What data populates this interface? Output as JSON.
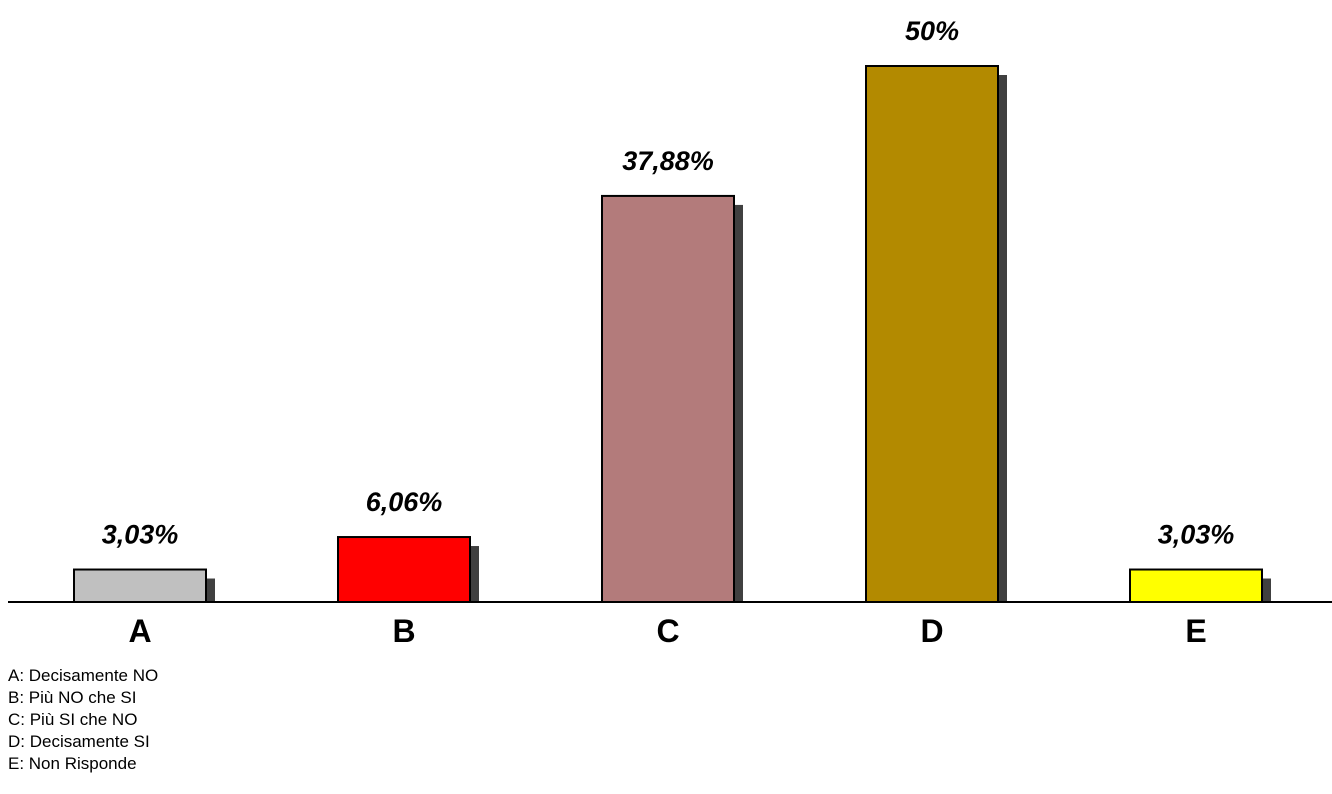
{
  "chart_data": {
    "type": "bar",
    "categories": [
      "A",
      "B",
      "C",
      "D",
      "E"
    ],
    "values": [
      3.03,
      6.06,
      37.88,
      50,
      3.03
    ],
    "value_labels": [
      "3,03%",
      "6,06%",
      "37,88%",
      "50%",
      "3,03%"
    ],
    "colors": [
      "#c0c0c0",
      "#ff0000",
      "#b37b7b",
      "#b38a00",
      "#ffff00"
    ],
    "shadow_color": "#404040",
    "border_color": "#000000",
    "ylim": [
      0,
      50
    ],
    "grid": false,
    "title": "",
    "xlabel": "",
    "ylabel": ""
  },
  "legend": {
    "items": [
      "A: Decisamente NO",
      "B: Più NO che SI",
      "C: Più SI che NO",
      "D: Decisamente SI",
      "E: Non Risponde"
    ]
  }
}
